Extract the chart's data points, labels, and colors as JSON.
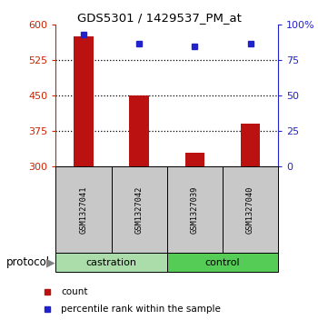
{
  "title": "GDS5301 / 1429537_PM_at",
  "samples": [
    "GSM1327041",
    "GSM1327042",
    "GSM1327039",
    "GSM1327040"
  ],
  "bar_color": "#BB1111",
  "dot_color": "#2222CC",
  "bar_values": [
    575,
    450,
    330,
    390
  ],
  "dot_values": [
    93,
    87,
    85,
    87
  ],
  "ylim_left": [
    300,
    600
  ],
  "ylim_right": [
    0,
    100
  ],
  "yticks_left": [
    300,
    375,
    450,
    525,
    600
  ],
  "yticks_right": [
    0,
    25,
    50,
    75,
    100
  ],
  "ytick_labels_right": [
    "0",
    "25",
    "50",
    "75",
    "100%"
  ],
  "left_axis_color": "#CC2200",
  "right_axis_color": "#2222CC",
  "legend_count_label": "count",
  "legend_pct_label": "percentile rank within the sample",
  "protocol_label": "protocol",
  "sample_box_color": "#C8C8C8",
  "group_box_color": "#90EE90",
  "castration_color": "#AADDAA",
  "control_color": "#55CC55"
}
